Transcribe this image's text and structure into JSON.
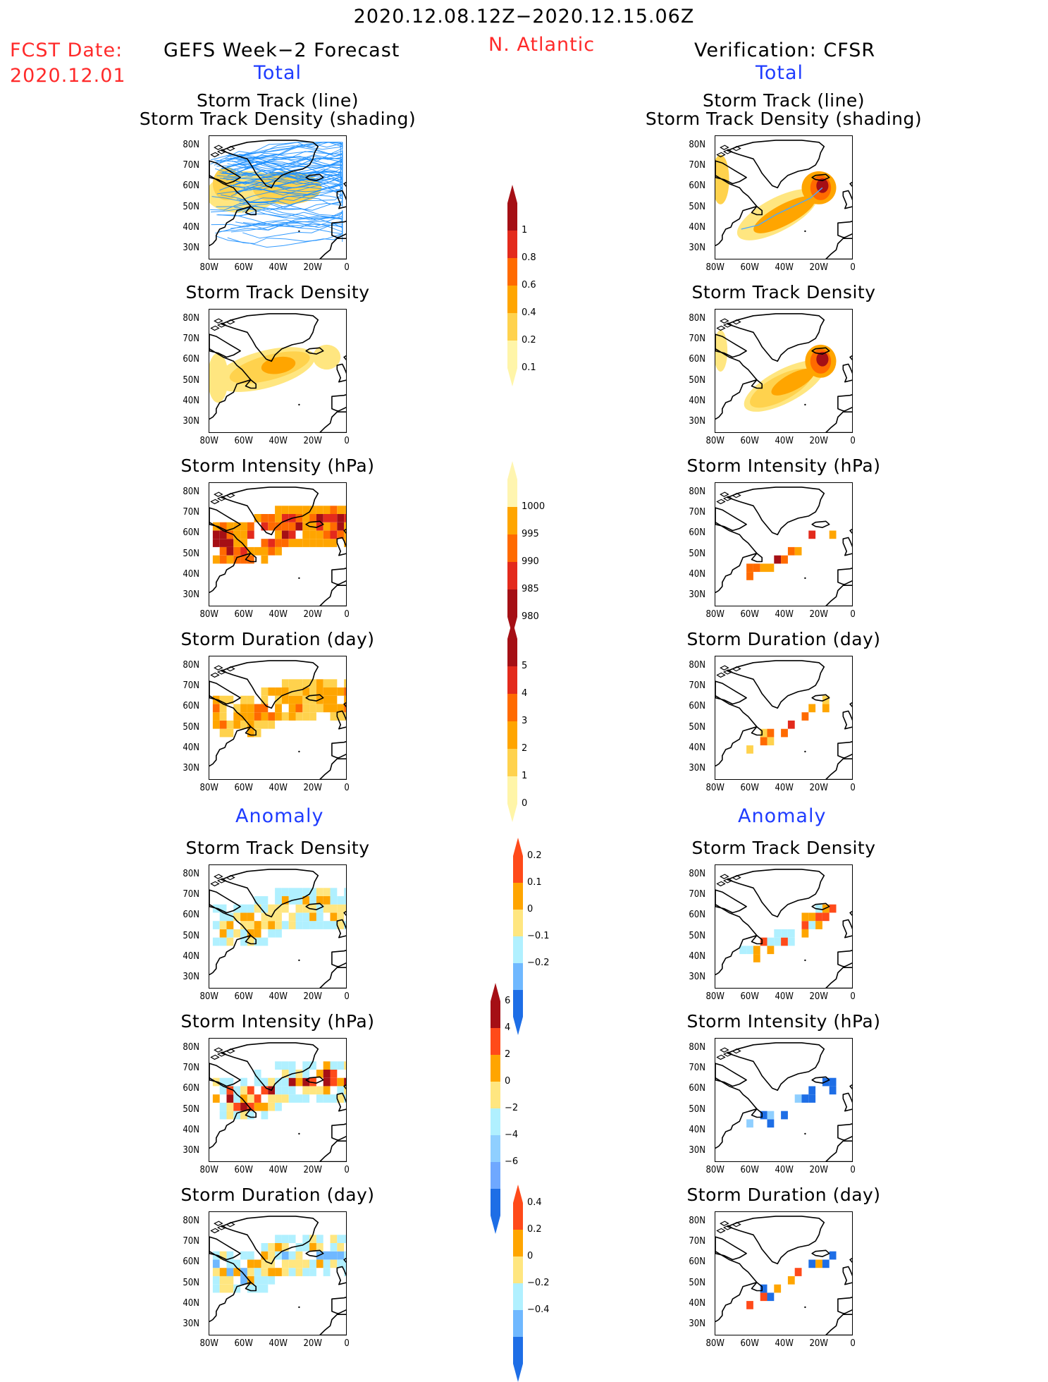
{
  "header": {
    "date_range": "2020.12.08.12Z−2020.12.15.06Z",
    "fcst_label": "FCST Date:",
    "fcst_date": "2020.12.01",
    "left_title": "GEFS Week−2 Forecast",
    "region": "N. Atlantic",
    "right_title": "Verification: CFSR",
    "total_left": "Total",
    "total_right": "Total",
    "anomaly_left": "Anomaly",
    "anomaly_right": "Anomaly"
  },
  "axes": {
    "y_ticks": [
      "80N",
      "70N",
      "60N",
      "50N",
      "40N",
      "30N"
    ],
    "x_ticks": [
      "80W",
      "60W",
      "40W",
      "20W",
      "0"
    ],
    "lon_range": [
      -80,
      0
    ],
    "lat_range": [
      25,
      85
    ]
  },
  "panel_titles": {
    "track_line": "Storm Track (line)",
    "track_shade": "Storm Track Density (shading)",
    "density": "Storm Track Density",
    "intensity": "Storm Intensity (hPa)",
    "duration": "Storm Duration (day)"
  },
  "colorbars": {
    "density": {
      "labels": [
        "1",
        "0.8",
        "0.6",
        "0.4",
        "0.2",
        "0.1"
      ],
      "colors": [
        "#a50f15",
        "#e32a1c",
        "#ff6a00",
        "#ffa500",
        "#ffd24d",
        "#fff5a8"
      ]
    },
    "intensity": {
      "labels": [
        "1000",
        "995",
        "990",
        "985",
        "980"
      ],
      "colors": [
        "#fff5b0",
        "#ffa500",
        "#ff6a00",
        "#e32a1c",
        "#a50f15"
      ]
    },
    "duration": {
      "labels": [
        "5",
        "4",
        "3",
        "2",
        "1",
        "0"
      ],
      "colors": [
        "#a50f15",
        "#e32a1c",
        "#ff6a00",
        "#ffa500",
        "#ffd24d",
        "#fff5a8"
      ]
    },
    "anom_density": {
      "labels": [
        "0.2",
        "0.1",
        "0",
        "−0.1",
        "−0.2"
      ],
      "colors": [
        "#ff4a1a",
        "#ffa500",
        "#ffe680",
        "#b0f0ff",
        "#6fb8ff",
        "#1e6ee6"
      ]
    },
    "anom_intensity": {
      "labels": [
        "6",
        "4",
        "2",
        "0",
        "−2",
        "−4",
        "−6"
      ],
      "colors": [
        "#a50f15",
        "#ff4a1a",
        "#ffa500",
        "#ffe680",
        "#b0f0ff",
        "#8fcfff",
        "#6fa8ff",
        "#1e6ee6"
      ]
    },
    "anom_duration": {
      "labels": [
        "0.4",
        "0.2",
        "0",
        "−0.2",
        "−0.4"
      ],
      "colors": [
        "#ff4a1a",
        "#ffa500",
        "#ffe680",
        "#b0f0ff",
        "#6fb8ff",
        "#1e6ee6"
      ]
    }
  },
  "chart_data": [
    {
      "type": "heatmap",
      "title": "Storm Track (line) Storm Track Density (shading)",
      "column": "GEFS Week−2 Forecast",
      "section": "Total",
      "series": "many ensemble storm tracks across 30N–80N, 80W–0"
    },
    {
      "type": "heatmap",
      "title": "Storm Track (line) Storm Track Density (shading)",
      "column": "Verification: CFSR",
      "section": "Total",
      "track": [
        [
          -65,
          40
        ],
        [
          -55,
          42
        ],
        [
          -45,
          47
        ],
        [
          -35,
          51
        ],
        [
          -25,
          55
        ],
        [
          -18,
          60
        ]
      ]
    },
    {
      "type": "heatmap",
      "title": "Storm Track Density",
      "column": "GEFS Week−2 Forecast",
      "section": "Total",
      "value_range": [
        0.1,
        0.4
      ]
    },
    {
      "type": "heatmap",
      "title": "Storm Track Density",
      "column": "Verification: CFSR",
      "section": "Total",
      "value_range": [
        0.1,
        1
      ]
    },
    {
      "type": "heatmap",
      "title": "Storm Intensity (hPa)",
      "column": "GEFS Week−2 Forecast",
      "section": "Total",
      "value_range": [
        980,
        1000
      ]
    },
    {
      "type": "heatmap",
      "title": "Storm Intensity (hPa)",
      "column": "Verification: CFSR",
      "section": "Total",
      "value_range": [
        980,
        1000
      ]
    },
    {
      "type": "heatmap",
      "title": "Storm Duration (day)",
      "column": "GEFS Week−2 Forecast",
      "section": "Total",
      "value_range": [
        0,
        3
      ]
    },
    {
      "type": "heatmap",
      "title": "Storm Duration (day)",
      "column": "Verification: CFSR",
      "section": "Total",
      "value_range": [
        0,
        4
      ]
    },
    {
      "type": "heatmap",
      "title": "Storm Track Density",
      "column": "GEFS Week−2 Forecast",
      "section": "Anomaly",
      "value_range": [
        -0.1,
        0.1
      ]
    },
    {
      "type": "heatmap",
      "title": "Storm Track Density",
      "column": "Verification: CFSR",
      "section": "Anomaly",
      "value_range": [
        -0.1,
        0.2
      ]
    },
    {
      "type": "heatmap",
      "title": "Storm Intensity (hPa)",
      "column": "GEFS Week−2 Forecast",
      "section": "Anomaly",
      "value_range": [
        -2,
        6
      ]
    },
    {
      "type": "heatmap",
      "title": "Storm Intensity (hPa)",
      "column": "Verification: CFSR",
      "section": "Anomaly",
      "value_range": [
        -6,
        6
      ]
    },
    {
      "type": "heatmap",
      "title": "Storm Duration (day)",
      "column": "GEFS Week−2 Forecast",
      "section": "Anomaly",
      "value_range": [
        -0.4,
        0.4
      ]
    },
    {
      "type": "heatmap",
      "title": "Storm Duration (day)",
      "column": "Verification: CFSR",
      "section": "Anomaly",
      "value_range": [
        -0.4,
        0.4
      ]
    }
  ]
}
